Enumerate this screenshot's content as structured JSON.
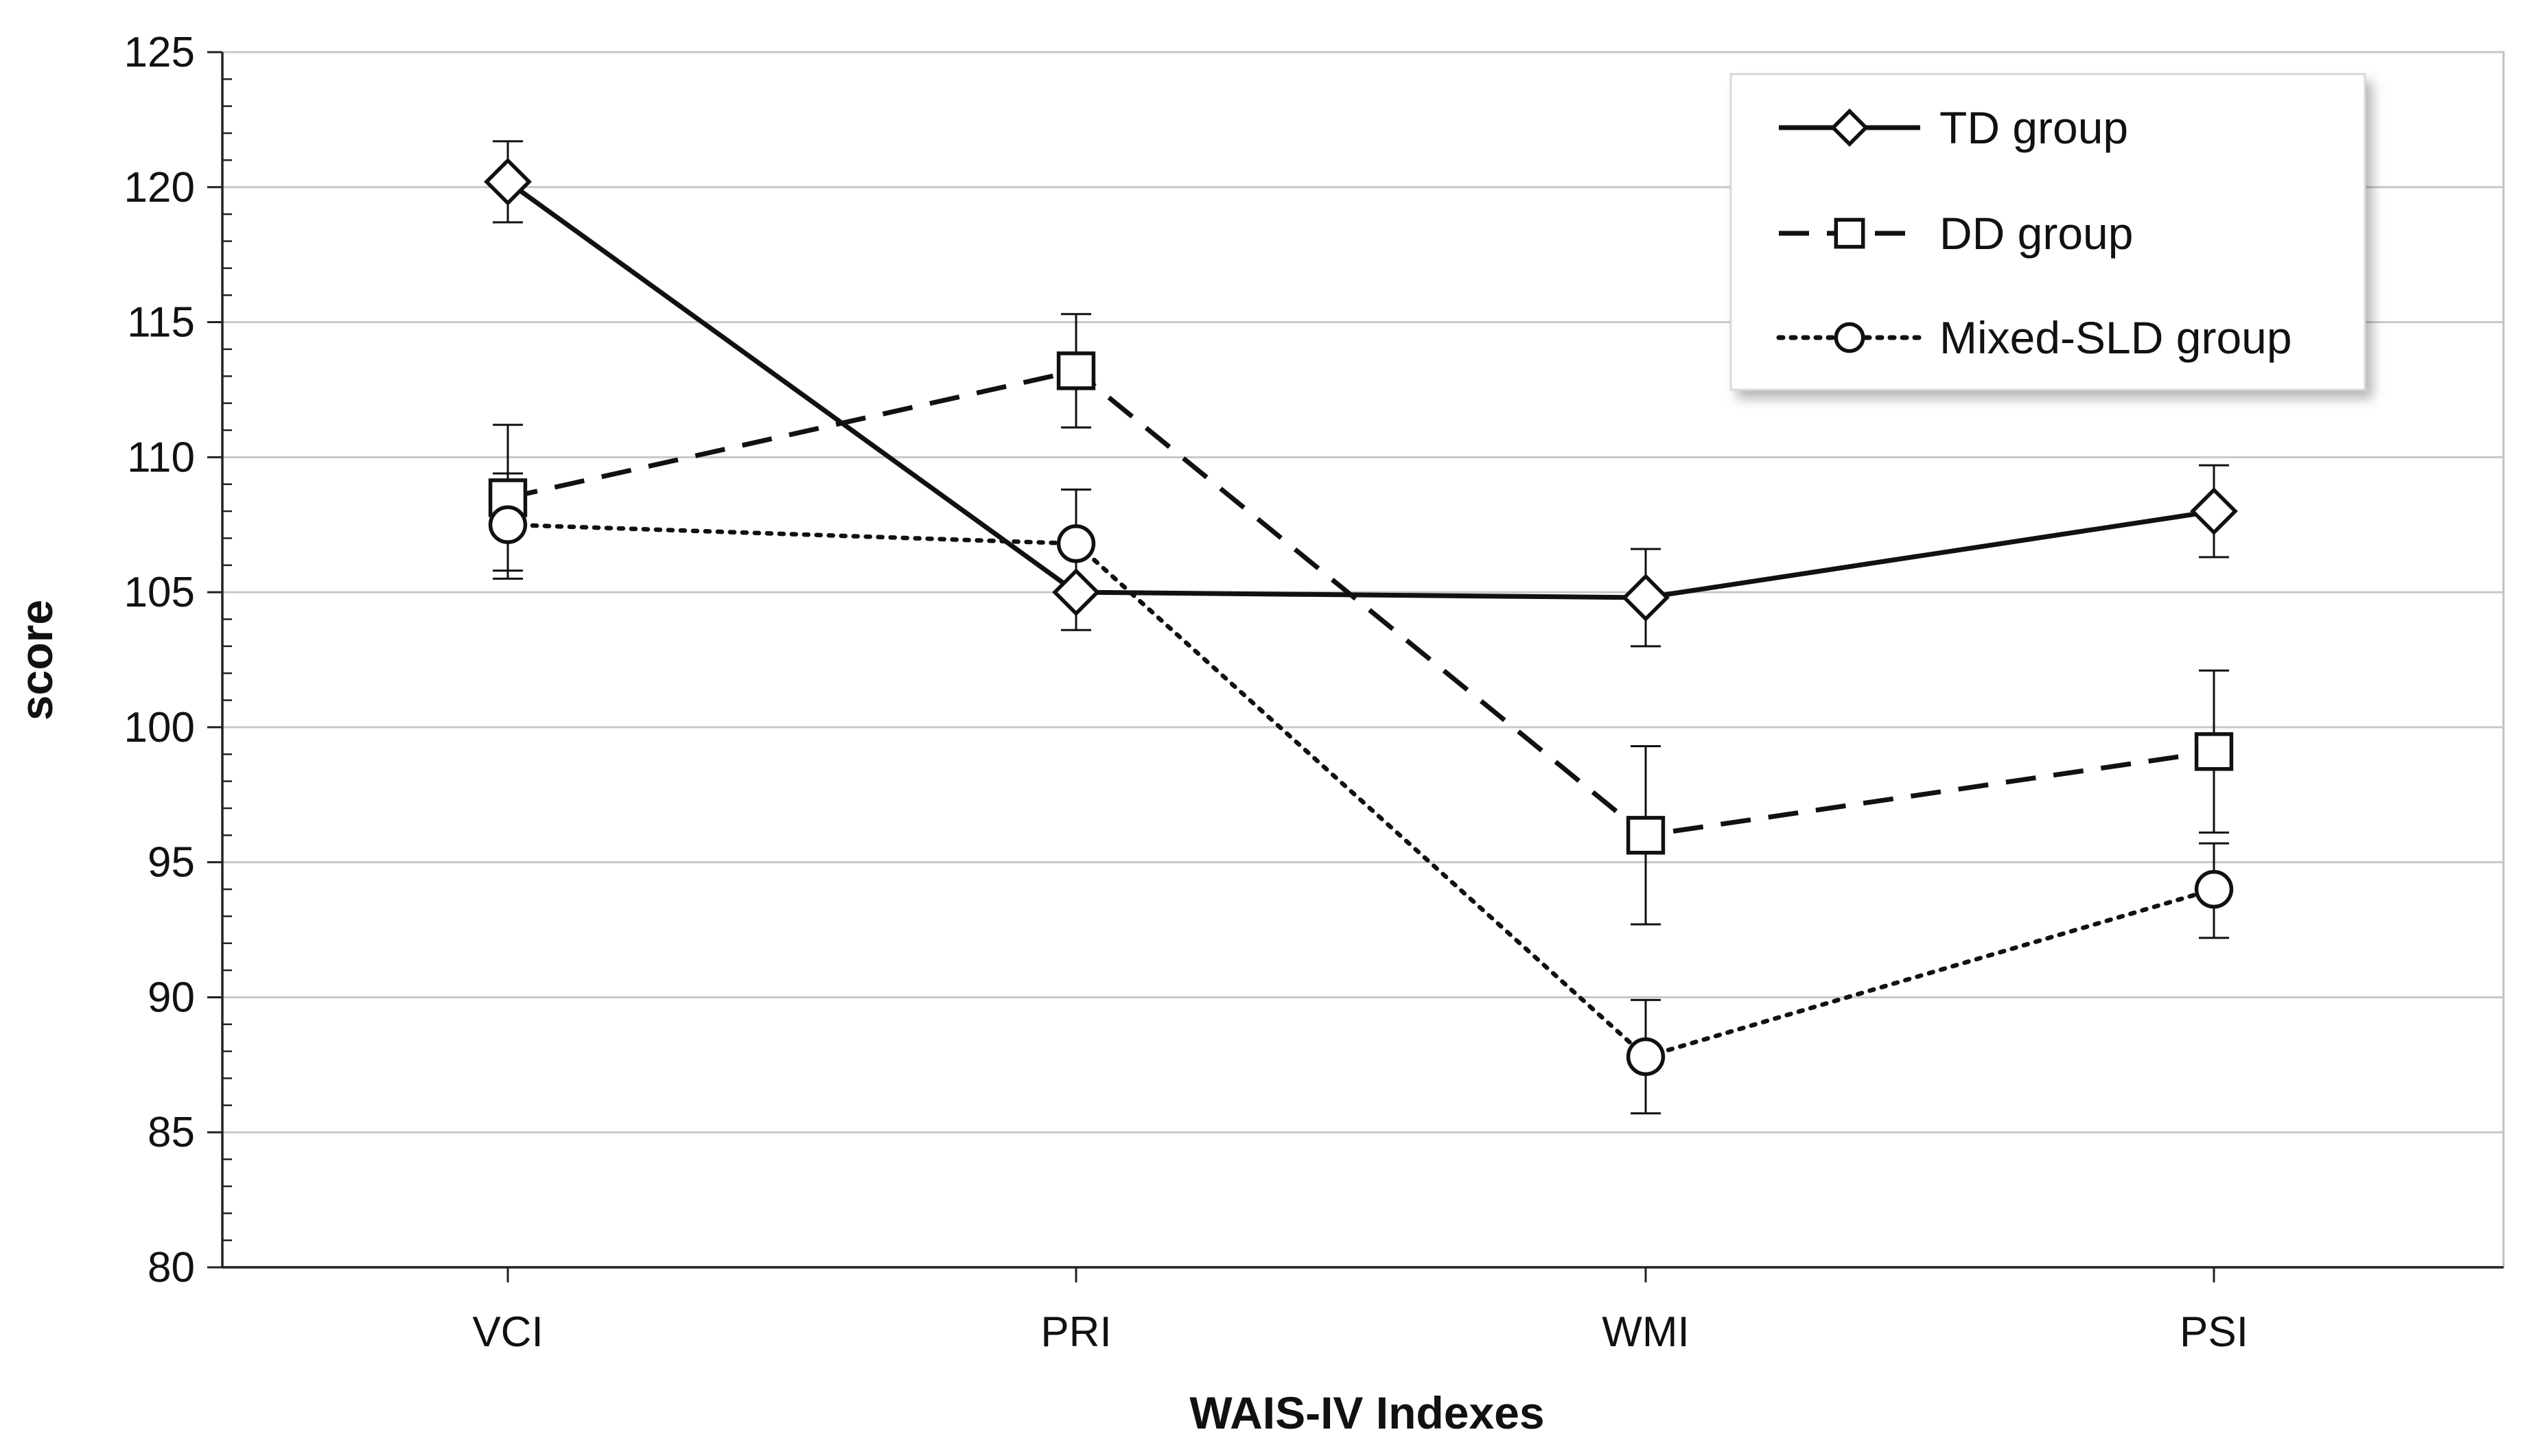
{
  "chart_data": {
    "type": "line",
    "title": "",
    "xlabel": "WAIS-IV Indexes",
    "ylabel": "score",
    "categories": [
      "VCI",
      "PRI",
      "WMI",
      "PSI"
    ],
    "ylim": [
      80,
      125
    ],
    "ytick_step": 5,
    "yticks": [
      "80",
      "85",
      "90",
      "95",
      "100",
      "105",
      "110",
      "115",
      "120",
      "125"
    ],
    "grid": true,
    "legend_position": "top-right",
    "series": [
      {
        "name": "TD group",
        "line_style": "solid",
        "marker": "diamond",
        "values": [
          120.2,
          105.0,
          104.8,
          108.0
        ],
        "error_low": [
          118.7,
          103.6,
          103.0,
          106.3
        ],
        "error_high": [
          121.7,
          106.4,
          106.6,
          109.7
        ]
      },
      {
        "name": "DD group",
        "line_style": "dashed",
        "marker": "square",
        "values": [
          108.5,
          113.2,
          96.0,
          99.1
        ],
        "error_low": [
          105.8,
          111.1,
          92.7,
          96.1
        ],
        "error_high": [
          111.2,
          115.3,
          99.3,
          102.1
        ]
      },
      {
        "name": "Mixed-SLD group",
        "line_style": "dotted",
        "marker": "circle",
        "values": [
          107.5,
          106.8,
          87.8,
          94.0
        ],
        "error_low": [
          105.5,
          104.8,
          85.7,
          92.2
        ],
        "error_high": [
          109.4,
          108.8,
          89.9,
          95.7
        ]
      }
    ]
  },
  "colors": {
    "line": "#111111",
    "grid": "#c8c8c8",
    "axis": "#222222",
    "background": "#ffffff",
    "legend_border": "#d9d9d9"
  }
}
